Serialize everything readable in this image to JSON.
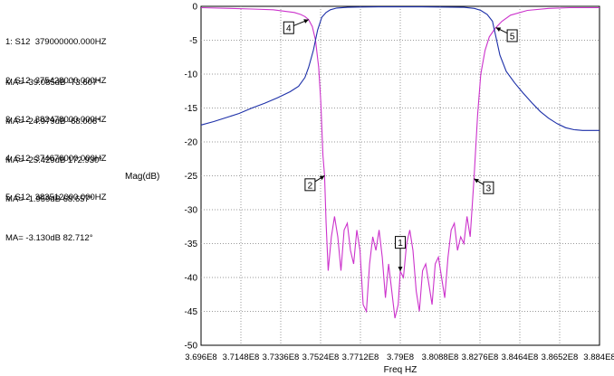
{
  "markers_panel": [
    {
      "line1": "1: S12  379000000.000HZ",
      "line2": "MA= -39.085dB -73.607°"
    },
    {
      "line1": "2: S12  375428000.000HZ",
      "line2": "MA= -24.979dB -68.006°"
    },
    {
      "line1": "3: S12  382478000.000HZ",
      "line2": "MA= -25.429dB 172.930°"
    },
    {
      "line1": "4: S12  374676000.000HZ",
      "line2": "MA= -1.959dB 68.657°"
    },
    {
      "line1": "5: S12  383512000.000HZ",
      "line2": "MA= -3.130dB 82.712°"
    }
  ],
  "chart_data": {
    "type": "line",
    "xlabel": "Freq HZ",
    "ylabel": "Mag(dB)",
    "xlim": [
      369600000,
      388400000
    ],
    "ylim": [
      -50,
      0
    ],
    "x_tick_labels": [
      "3.696E8",
      "3.7148E8",
      "3.7336E8",
      "3.7524E8",
      "3.7712E8",
      "3.79E8",
      "3.8088E8",
      "3.8276E8",
      "3.8464E8",
      "3.8652E8",
      "3.884E8"
    ],
    "y_ticks": [
      0,
      -5,
      -10,
      -15,
      -20,
      -25,
      -30,
      -35,
      -40,
      -45,
      -50
    ],
    "grid": true,
    "series": [
      {
        "color": "#cc33cc",
        "x": [
          369600000,
          371000000,
          372000000,
          373000000,
          373500000,
          374000000,
          374300000,
          374500000,
          374676000,
          374850000,
          375000000,
          375150000,
          375250000,
          375300000,
          375350000,
          375428000,
          375500000,
          375600000,
          375750000,
          375900000,
          376050000,
          376200000,
          376350000,
          376500000,
          376650000,
          376800000,
          376950000,
          377100000,
          377250000,
          377400000,
          377550000,
          377700000,
          377850000,
          378000000,
          378150000,
          378300000,
          378450000,
          378600000,
          378750000,
          378900000,
          379000000,
          379150000,
          379300000,
          379450000,
          379600000,
          379750000,
          379900000,
          380050000,
          380200000,
          380350000,
          380500000,
          380650000,
          380800000,
          380950000,
          381100000,
          381250000,
          381400000,
          381550000,
          381700000,
          381850000,
          382000000,
          382150000,
          382300000,
          382478000,
          382650000,
          382800000,
          383000000,
          383200000,
          383400000,
          383512000,
          383800000,
          384200000,
          385000000,
          386000000,
          387000000,
          388400000
        ],
        "y": [
          -0.2,
          -0.3,
          -0.4,
          -0.5,
          -0.7,
          -0.9,
          -1.2,
          -1.5,
          -1.96,
          -3,
          -5,
          -9,
          -14,
          -18,
          -22,
          -24.98,
          -32,
          -39,
          -34,
          -31,
          -34,
          -39,
          -33,
          -32,
          -36,
          -38,
          -33,
          -36,
          -44,
          -45,
          -38,
          -34,
          -36,
          -33,
          -37,
          -43,
          -38,
          -42,
          -46,
          -44,
          -39.09,
          -40,
          -35,
          -33,
          -36,
          -42,
          -45,
          -39,
          -38,
          -41,
          -44,
          -38,
          -37,
          -40,
          -43,
          -37,
          -33,
          -32,
          -36,
          -34,
          -35,
          -31,
          -34,
          -25.43,
          -16,
          -10,
          -6.5,
          -4.5,
          -3.6,
          -3.13,
          -2.2,
          -1.3,
          -0.6,
          -0.3,
          -0.2,
          -0.2
        ]
      },
      {
        "color": "#1c2fa8",
        "x": [
          369600000,
          370200000,
          370800000,
          371400000,
          372000000,
          372600000,
          373200000,
          373800000,
          374200000,
          374500000,
          374676000,
          374900000,
          375100000,
          375300000,
          375500000,
          375700000,
          376000000,
          376500000,
          377000000,
          378000000,
          379000000,
          380000000,
          381000000,
          382000000,
          382500000,
          382800000,
          383100000,
          383350000,
          383512000,
          383700000,
          384000000,
          384400000,
          384800000,
          385200000,
          385600000,
          386000000,
          386400000,
          386800000,
          387200000,
          387600000,
          388000000,
          388400000
        ],
        "y": [
          -17.5,
          -17,
          -16.4,
          -15.8,
          -15,
          -14.3,
          -13.5,
          -12.6,
          -11.8,
          -10.5,
          -9,
          -6.5,
          -3.5,
          -1.6,
          -0.9,
          -0.5,
          -0.25,
          -0.15,
          -0.1,
          -0.08,
          -0.08,
          -0.08,
          -0.1,
          -0.15,
          -0.3,
          -0.6,
          -1.2,
          -2.2,
          -4.5,
          -7.2,
          -9.6,
          -11.3,
          -12.8,
          -14.2,
          -15.5,
          -16.5,
          -17.3,
          -17.9,
          -18.2,
          -18.3,
          -18.3,
          -18.3
        ]
      }
    ],
    "annotations": [
      {
        "label": "1",
        "x": 379000000,
        "y": -39.085
      },
      {
        "label": "2",
        "x": 375428000,
        "y": -24.979
      },
      {
        "label": "3",
        "x": 382478000,
        "y": -25.429
      },
      {
        "label": "4",
        "x": 374676000,
        "y": -1.959
      },
      {
        "label": "5",
        "x": 383512000,
        "y": -3.13
      }
    ]
  }
}
